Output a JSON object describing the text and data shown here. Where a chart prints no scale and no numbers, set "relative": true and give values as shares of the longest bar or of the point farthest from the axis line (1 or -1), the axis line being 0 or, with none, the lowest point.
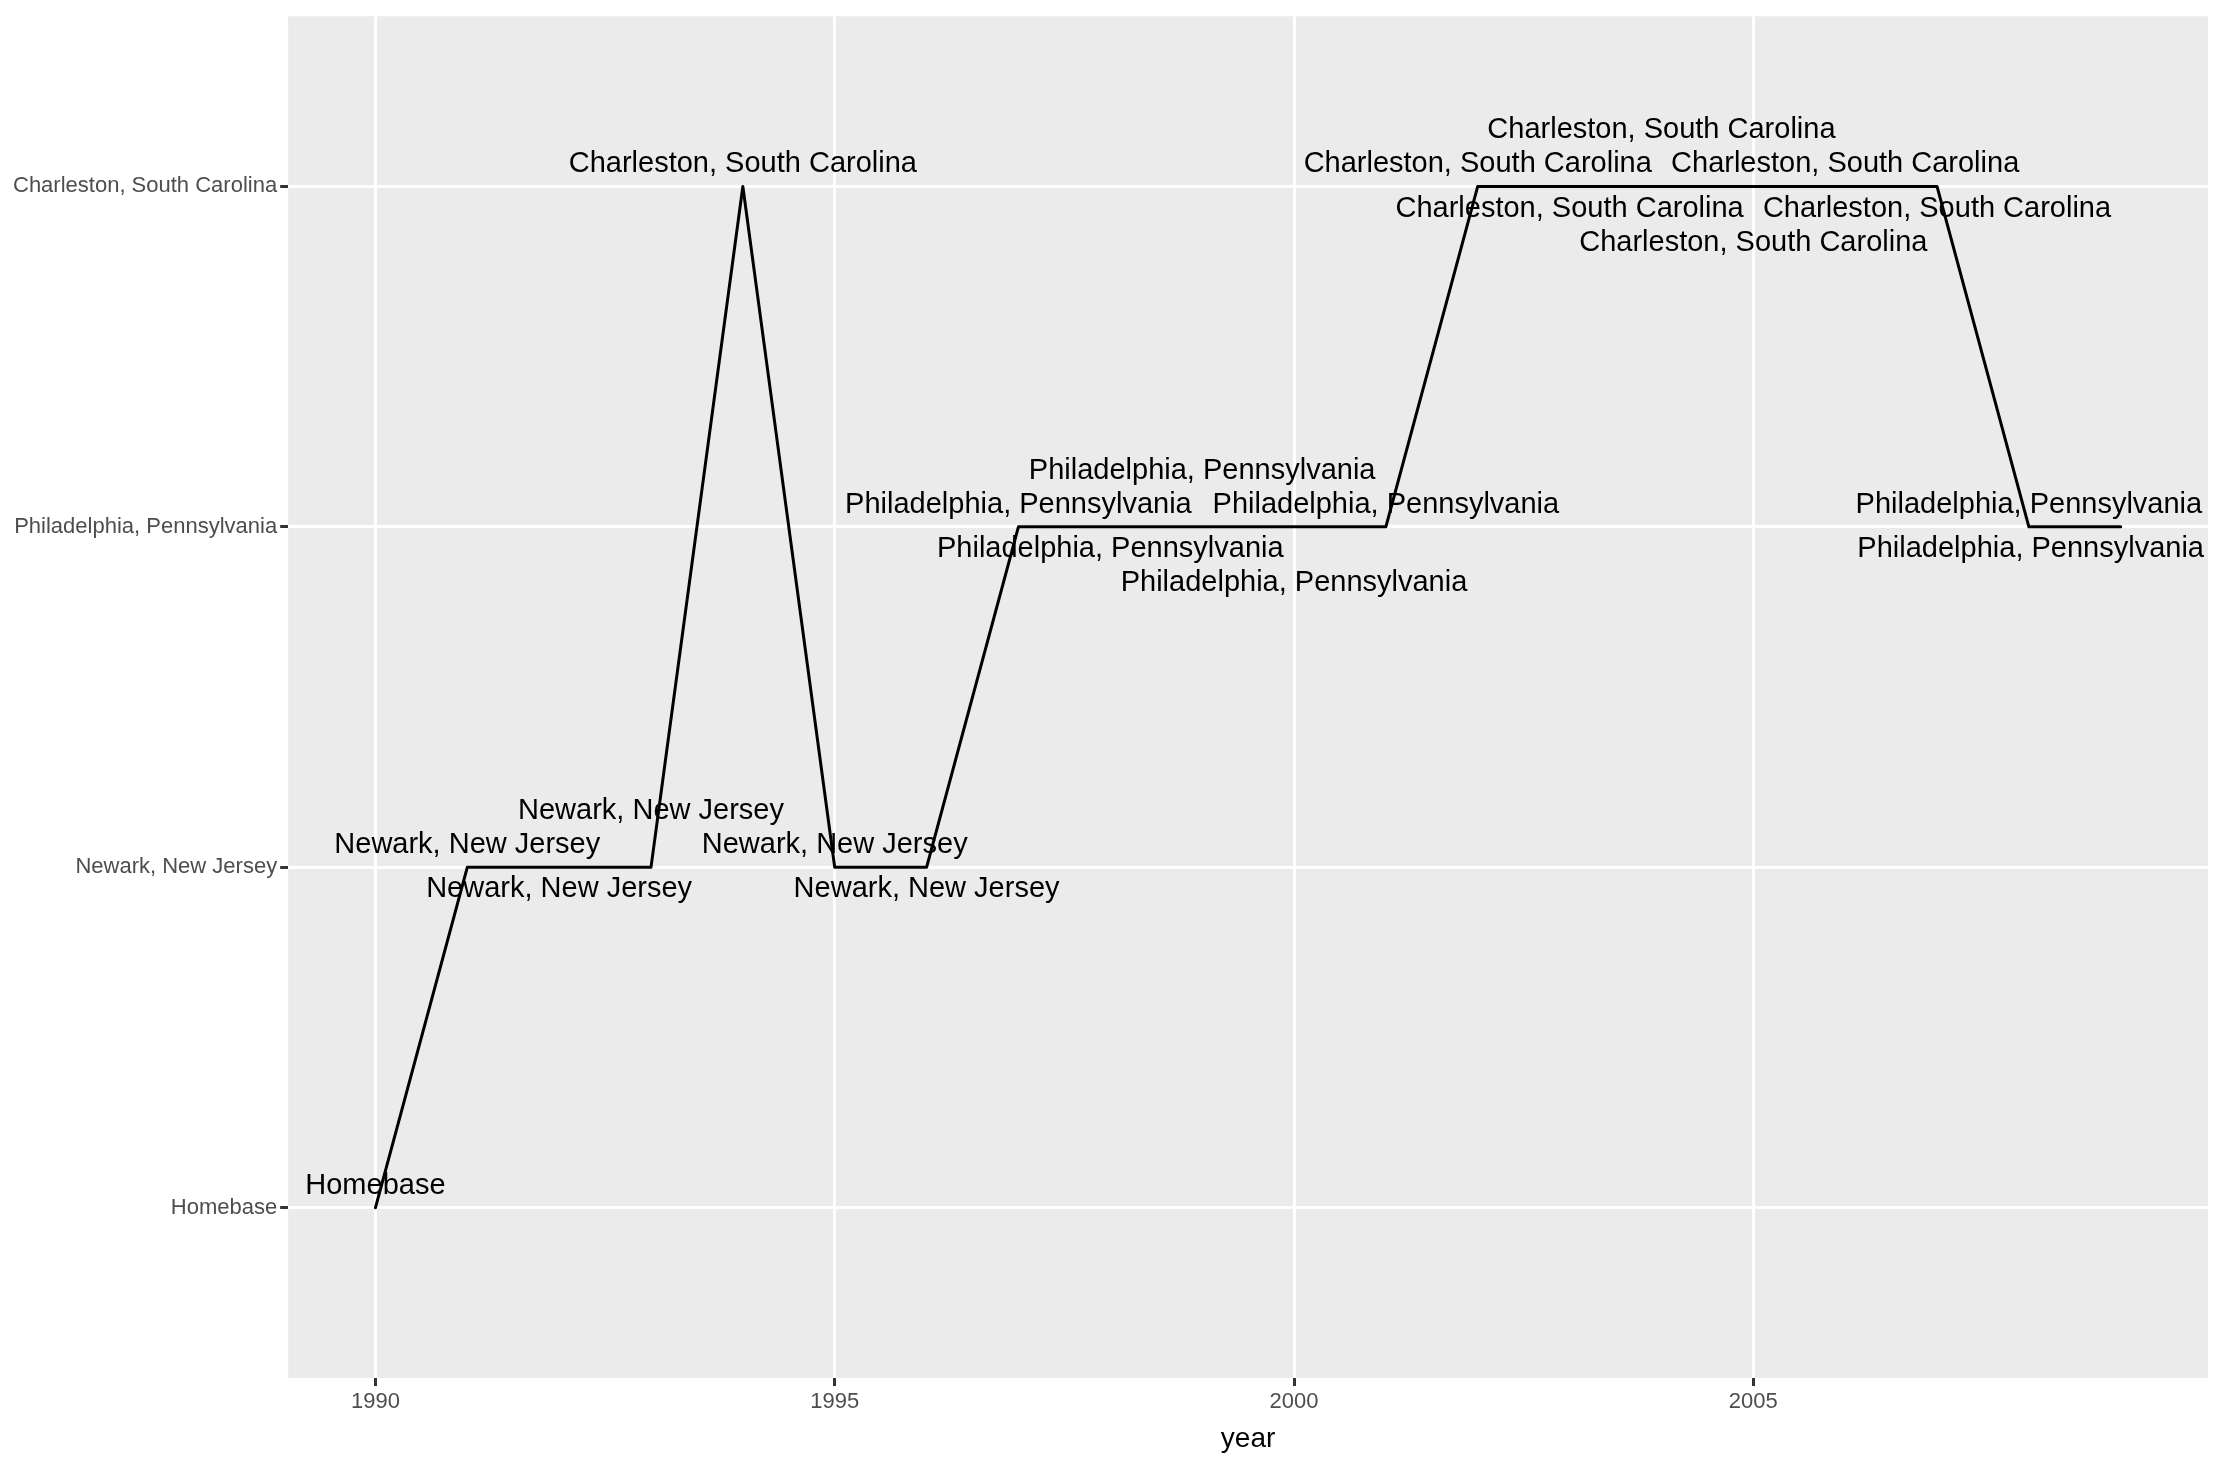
{
  "chart_data": {
    "type": "line",
    "x": [
      1990,
      1991,
      1992,
      1993,
      1994,
      1995,
      1996,
      1997,
      1998,
      1999,
      2000,
      2001,
      2002,
      2003,
      2004,
      2005,
      2006,
      2007,
      2008,
      2009
    ],
    "relative": true,
    "values": [
      0,
      0.3333,
      0.3333,
      0.3333,
      1,
      0.3333,
      0.3333,
      0.6667,
      0.6667,
      0.6667,
      0.6667,
      0.6667,
      1,
      1,
      1,
      1,
      1,
      1,
      0.6667,
      0.6667
    ],
    "y_categories": [
      "Charleston, South Carolina",
      "Philadelphia, Pennsylvania",
      "Newark, New Jersey",
      "Homebase"
    ],
    "annotations": [
      {
        "text": "Homebase",
        "x": 1990,
        "y": 0
      },
      {
        "text": "Newark, New Jersey",
        "x": 1991,
        "y": 0.3333
      },
      {
        "text": "Newark, New Jersey",
        "x": 1992,
        "y": 0.3333
      },
      {
        "text": "Newark, New Jersey",
        "x": 1993,
        "y": 0.3333
      },
      {
        "text": "Charleston, South Carolina",
        "x": 1994,
        "y": 1
      },
      {
        "text": "Newark, New Jersey",
        "x": 1995,
        "y": 0.3333
      },
      {
        "text": "Newark, New Jersey",
        "x": 1996,
        "y": 0.3333
      },
      {
        "text": "Philadelphia, Pennsylvania",
        "x": 1997,
        "y": 0.6667
      },
      {
        "text": "Philadelphia, Pennsylvania",
        "x": 1998,
        "y": 0.6667
      },
      {
        "text": "Philadelphia, Pennsylvania",
        "x": 1999,
        "y": 0.6667
      },
      {
        "text": "Philadelphia, Pennsylvania",
        "x": 2000,
        "y": 0.6667
      },
      {
        "text": "Philadelphia, Pennsylvania",
        "x": 2001,
        "y": 0.6667
      },
      {
        "text": "Charleston, South Carolina",
        "x": 2002,
        "y": 1
      },
      {
        "text": "Charleston, South Carolina",
        "x": 2003,
        "y": 1
      },
      {
        "text": "Charleston, South Carolina",
        "x": 2004,
        "y": 1
      },
      {
        "text": "Charleston, South Carolina",
        "x": 2005,
        "y": 1
      },
      {
        "text": "Charleston, South Carolina",
        "x": 2006,
        "y": 1
      },
      {
        "text": "Charleston, South Carolina",
        "x": 2007,
        "y": 1
      },
      {
        "text": "Philadelphia, Pennsylvania",
        "x": 2008,
        "y": 0.6667
      },
      {
        "text": "Philadelphia, Pennsylvania",
        "x": 2009,
        "y": 0.6667
      }
    ],
    "color": "#000000",
    "xlim": [
      1989.05,
      2009.95
    ],
    "xticks": [
      1990,
      1995,
      2000,
      2005
    ],
    "xlabel": "year",
    "grid": true,
    "legend": false,
    "marker": "none",
    "line_style": "solid"
  }
}
